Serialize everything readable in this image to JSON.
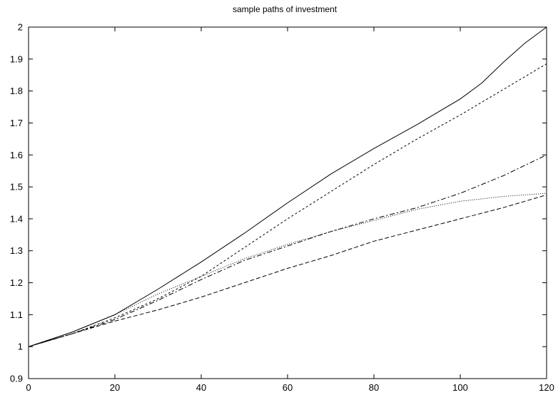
{
  "chart_data": {
    "type": "line",
    "title": "sample paths of investment",
    "xlabel": "",
    "ylabel": "",
    "xlim": [
      0,
      120
    ],
    "ylim": [
      0.9,
      2
    ],
    "xticks": [
      0,
      20,
      40,
      60,
      80,
      100,
      120
    ],
    "yticks": [
      0.9,
      1,
      1.1,
      1.2,
      1.3,
      1.4,
      1.5,
      1.6,
      1.7,
      1.8,
      1.9,
      2
    ],
    "grid": false,
    "legend": "none",
    "series": [
      {
        "style": "solid",
        "x": [
          0,
          10,
          20,
          30,
          40,
          50,
          60,
          70,
          80,
          90,
          100,
          105,
          110,
          115,
          120
        ],
        "y": [
          1.0,
          1.045,
          1.1,
          1.18,
          1.265,
          1.355,
          1.45,
          1.54,
          1.62,
          1.695,
          1.775,
          1.825,
          1.89,
          1.95,
          2.0
        ]
      },
      {
        "style": "dashed",
        "x": [
          0,
          10,
          20,
          30,
          40,
          50,
          60,
          70,
          80,
          90,
          100,
          110,
          120
        ],
        "y": [
          1.0,
          1.04,
          1.09,
          1.15,
          1.22,
          1.31,
          1.4,
          1.485,
          1.57,
          1.65,
          1.725,
          1.805,
          1.885
        ]
      },
      {
        "style": "dash-dot",
        "x": [
          0,
          10,
          20,
          30,
          40,
          50,
          60,
          70,
          80,
          90,
          100,
          110,
          120
        ],
        "y": [
          1.0,
          1.04,
          1.085,
          1.145,
          1.21,
          1.27,
          1.315,
          1.36,
          1.4,
          1.435,
          1.48,
          1.535,
          1.6
        ]
      },
      {
        "style": "dotted",
        "x": [
          0,
          10,
          20,
          30,
          40,
          50,
          60,
          70,
          80,
          90,
          100,
          110,
          120
        ],
        "y": [
          1.0,
          1.045,
          1.1,
          1.165,
          1.22,
          1.275,
          1.32,
          1.36,
          1.395,
          1.43,
          1.455,
          1.47,
          1.48
        ]
      },
      {
        "style": "long-dash",
        "x": [
          0,
          10,
          20,
          30,
          40,
          50,
          60,
          70,
          80,
          90,
          100,
          110,
          120
        ],
        "y": [
          1.0,
          1.04,
          1.08,
          1.115,
          1.155,
          1.2,
          1.245,
          1.285,
          1.33,
          1.365,
          1.4,
          1.435,
          1.475
        ]
      }
    ]
  }
}
